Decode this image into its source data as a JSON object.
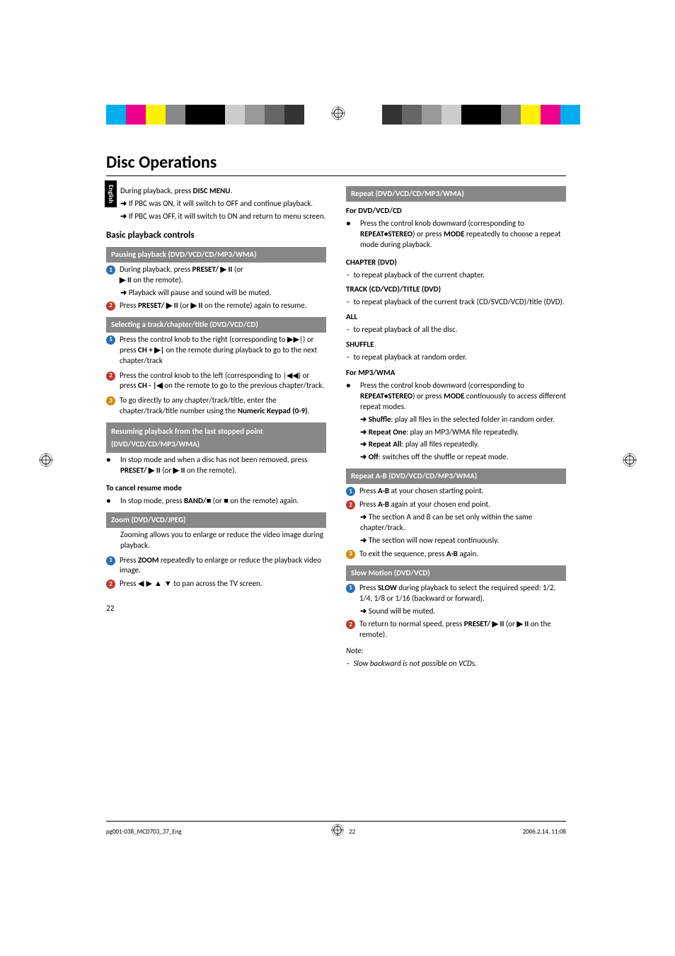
{
  "colorbar_left": [
    "#00aeef",
    "#ec008c",
    "#fff200",
    "#888888",
    "#000000",
    "#000000",
    "#cccccc",
    "#999999",
    "#666666",
    "#333333"
  ],
  "colorbar_right": [
    "#333333",
    "#666666",
    "#999999",
    "#cccccc",
    "#000000",
    "#000000",
    "#888888",
    "#fff200",
    "#ec008c",
    "#00aeef"
  ],
  "side_tab": "English",
  "title": "Disc Operations",
  "page_num": "22",
  "footer": {
    "file": "pg001-038_MCD703_37_Eng",
    "pg": "22",
    "date": "2006.2.14, 11:08"
  },
  "L": {
    "disc_menu": {
      "line": "During playback, press ",
      "btn": "DISC MENU",
      "tail": ".",
      "a1": "If PBC was ON, it will switch to OFF and continue playback.",
      "a2": "If PBC was OFF, it will switch to ON and return to menu screen."
    },
    "h2": "Basic playback controls",
    "band1": "Pausing playback (DVD/VCD/CD/MP3/WMA)",
    "p1": {
      "pre": "During playback, press ",
      "b": "PRESET/ ▶ II",
      "post": "  (or",
      "l2b": "▶ II",
      "l2": "  on the remote).",
      "a": "Playback will pause and sound will be muted."
    },
    "p2": {
      "pre": "Press ",
      "b": "PRESET/ ▶ II",
      "mid": "  (or  ",
      "b2": "▶ II",
      "post": "  on the remote) again to resume."
    },
    "band2": "Selecting a track/chapter/title (DVD/VCD/CD)",
    "s1": {
      "t": "Press the control knob to the right (corresponding to ▶▶|) or press ",
      "b": "CH + ▶|",
      "post": " on the remote during playback to go to the next chapter/track"
    },
    "s2": {
      "t": "Press the control knob to the left (corresponding to |◀◀) or press ",
      "b": "CH - |◀",
      "post": " on the remote to go to the previous chapter/track."
    },
    "s3": {
      "t": "To go directly to any chapter/track/title, enter the chapter/track/title number using the ",
      "b": "Numeric Keypad (0-9)",
      "post": "."
    },
    "band3": "Resuming playback from the last stopped point (DVD/VCD/CD/MP3/WMA)",
    "r1": {
      "t": "In stop mode and when a disc has not been removed, press ",
      "b": "PRESET/ ▶ II",
      "mid": "  (or  ",
      "b2": "▶ II",
      "post": " on the remote)."
    },
    "cancel_h": "To cancel resume mode",
    "r2": {
      "t": "In stop mode, press ",
      "b": "BAND/■",
      "mid": " (or ",
      "b2": "■",
      "post": "  on the remote) again."
    },
    "band4": "Zoom (DVD/VCD/JPEG)",
    "z0": "Zooming allows you to enlarge or reduce the video image during playback.",
    "z1": {
      "t": "Press ",
      "b": "ZOOM",
      "post": " repeatedly to enlarge or reduce the playback video image."
    },
    "z2": {
      "t": "Press ",
      "sym": "◀ ▶ ▲ ▼",
      "post": " to pan across the TV screen."
    }
  },
  "R": {
    "band1": "Repeat (DVD/VCD/CD/MP3/WMA)",
    "dvd_h": "For DVD/VCD/CD",
    "dvd_t": {
      "t": "Press the control knob downward (corresponding to ",
      "b": "REPEAT•STEREO",
      "mid": ") or press ",
      "b2": "MODE",
      "post": " repeatedly to choose a repeat mode during playback."
    },
    "ch_h": "CHAPTER (DVD)",
    "ch_t": "to repeat playback of the current chapter.",
    "tr_h": "TRACK (CD/VCD)/TITLE (DVD)",
    "tr_t": "to repeat playback of the current track (CD/SVCD/VCD)/title (DVD).",
    "all_h": "ALL",
    "all_t": "to repeat playback of all the disc.",
    "sh_h": "SHUFFLE",
    "sh_t": "to repeat playback at random order.",
    "mp3_h": "For MP3/WMA",
    "mp3_t": {
      "t": "Press the control knob downward (corresponding to ",
      "b": "REPEAT•STEREO",
      "mid": ") or press ",
      "b2": "MODE",
      "post": " continuously to access different repeat modes."
    },
    "m1b": "Shuffle",
    "m1": ": play all files in the selected folder in random order.",
    "m2b": "Repeat One",
    "m2": ": play an MP3/WMA file repeatedly.",
    "m3b": "Repeat All",
    "m3": ": play all files repeatedly.",
    "m4b": "Off",
    "m4": ": switches off the shuffle or repeat mode.",
    "band2": "Repeat A-B (DVD/VCD/CD/MP3/WMA)",
    "ab1": {
      "t": "Press ",
      "b": "A-B",
      "post": " at your chosen starting point."
    },
    "ab2": {
      "t": "Press ",
      "b": "A-B",
      "post": " again at your chosen end point.",
      "a1": "The section A and B can be set only within the same chapter/track.",
      "a2": "The section will now repeat continuously."
    },
    "ab3": {
      "t": "To exit the sequence, press ",
      "b": "A-B",
      "post": " again."
    },
    "band3": "Slow Motion (DVD/VCD)",
    "sm1": {
      "t": "Press ",
      "b": "SLOW",
      "post": " during playback to select the required speed: 1/2, 1/4, 1/8 or 1/16 (backward or forward).",
      "a": "Sound will be muted."
    },
    "sm2": {
      "t": "To return to normal speed, press ",
      "b": "PRESET/ ▶ II",
      "mid": "  (or ",
      "b2": "▶ II",
      "post": " on the remote)."
    },
    "note_h": "Note:",
    "note_t": "Slow backward is not possible on VCDs."
  }
}
